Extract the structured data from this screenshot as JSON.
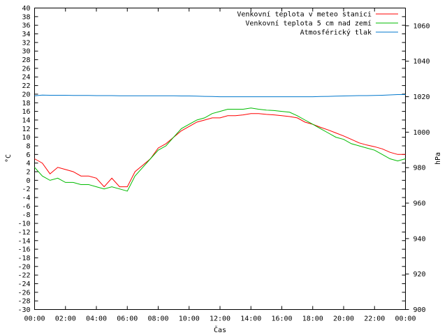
{
  "chart_data": {
    "type": "line",
    "title": "",
    "xlabel": "Čas",
    "ylabel": "°C",
    "y2label": "hPa",
    "ylim": [
      -30,
      40
    ],
    "ystep": 2,
    "y2lim": [
      900,
      1070
    ],
    "y2ticks": [
      900,
      920,
      940,
      960,
      980,
      1000,
      1020,
      1040,
      1060
    ],
    "xlim": [
      0,
      24
    ],
    "xticks": [
      "00:00",
      "02:00",
      "04:00",
      "06:00",
      "08:00",
      "10:00",
      "12:00",
      "14:00",
      "16:00",
      "18:00",
      "20:00",
      "22:00",
      "00:00"
    ],
    "grid": false,
    "legend_position": "top-right",
    "x": [
      0,
      0.5,
      1,
      1.5,
      2,
      2.5,
      3,
      3.5,
      4,
      4.5,
      5,
      5.5,
      6,
      6.5,
      7,
      7.5,
      8,
      8.5,
      9,
      9.5,
      10,
      10.5,
      11,
      11.5,
      12,
      12.5,
      13,
      13.5,
      14,
      14.5,
      15,
      15.5,
      16,
      16.5,
      17,
      17.5,
      18,
      18.5,
      19,
      19.5,
      20,
      20.5,
      21,
      21.5,
      22,
      22.5,
      23,
      23.5,
      24
    ],
    "series": [
      {
        "name": "Venkovní teplota v meteo stanici",
        "color": "#ff0000",
        "axis": "left",
        "values": [
          5,
          4,
          1.5,
          3,
          2.5,
          2,
          1,
          1,
          0.5,
          -1.5,
          0.5,
          -1.5,
          -1.5,
          2,
          3.5,
          5,
          7.5,
          8.5,
          10,
          11.5,
          12.5,
          13.5,
          14,
          14.5,
          14.5,
          15,
          15,
          15.2,
          15.5,
          15.5,
          15.3,
          15.2,
          15,
          14.8,
          14.5,
          13.5,
          13,
          12.3,
          11.7,
          11,
          10.3,
          9.5,
          8.7,
          8.2,
          7.8,
          7.3,
          6.5,
          6,
          6
        ]
      },
      {
        "name": "Venkovní teplota 5 cm nad zemí",
        "color": "#00bb00",
        "axis": "left",
        "values": [
          3,
          1,
          0,
          0.5,
          -0.5,
          -0.5,
          -1,
          -1,
          -1.5,
          -2,
          -1.5,
          -2,
          -2.5,
          1,
          3,
          5,
          7,
          8,
          10,
          12,
          13,
          14,
          14.5,
          15.5,
          16,
          16.5,
          16.5,
          16.5,
          16.8,
          16.5,
          16.3,
          16.2,
          16,
          15.8,
          15,
          14,
          13,
          12,
          11,
          10,
          9.5,
          8.5,
          8,
          7.5,
          7,
          6,
          5,
          4.5,
          5
        ]
      },
      {
        "name": "Atmosférický tlak",
        "color": "#0077cc",
        "axis": "right",
        "values": [
          1020.5,
          1020.9,
          1020.8,
          1020.8,
          1020.8,
          1020.7,
          1020.7,
          1020.7,
          1020.6,
          1020.6,
          1020.6,
          1020.5,
          1020.5,
          1020.5,
          1020.5,
          1020.5,
          1020.5,
          1020.5,
          1020.5,
          1020.4,
          1020.4,
          1020.3,
          1020.2,
          1020.1,
          1020,
          1020,
          1020,
          1020,
          1020,
          1020,
          1020,
          1020,
          1020,
          1020,
          1020,
          1020,
          1020,
          1020.1,
          1020.2,
          1020.3,
          1020.4,
          1020.5,
          1020.6,
          1020.6,
          1020.7,
          1020.8,
          1021,
          1021.2,
          1021.2
        ]
      }
    ]
  }
}
